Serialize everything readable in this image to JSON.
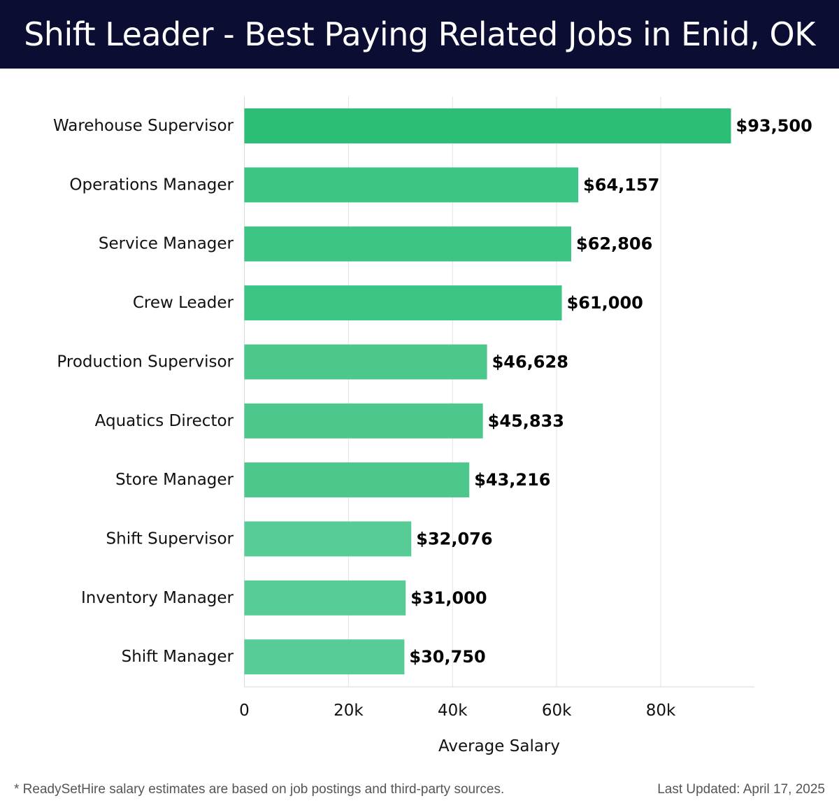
{
  "header": {
    "title": "Shift Leader - Best Paying Related Jobs in Enid, OK"
  },
  "footer": {
    "note": "* ReadySetHire salary estimates are based on job postings and third-party sources.",
    "updated": "Last Updated: April 17, 2025"
  },
  "chart_data": {
    "type": "bar",
    "orientation": "horizontal",
    "categories": [
      "Warehouse Supervisor",
      "Operations Manager",
      "Service Manager",
      "Crew Leader",
      "Production Supervisor",
      "Aquatics Director",
      "Store Manager",
      "Shift Supervisor",
      "Inventory Manager",
      "Shift Manager"
    ],
    "values": [
      93500,
      64157,
      62806,
      61000,
      46628,
      45833,
      43216,
      32076,
      31000,
      30750
    ],
    "value_labels": [
      "$93,500",
      "$64,157",
      "$62,806",
      "$61,000",
      "$46,628",
      "$45,833",
      "$43,216",
      "$32,076",
      "$31,000",
      "$30,750"
    ],
    "xlabel": "Average Salary",
    "xticks": [
      0,
      20000,
      40000,
      60000,
      80000
    ],
    "xtick_labels": [
      "0",
      "20k",
      "40k",
      "60k",
      "80k"
    ],
    "xlim": [
      0,
      98000
    ],
    "grid": true,
    "bar_colors": [
      "#2bbf76",
      "#3dc585",
      "#3dc585",
      "#3dc585",
      "#4cc88c",
      "#4cc88c",
      "#4cc88c",
      "#58cc96",
      "#58cc96",
      "#58cc96"
    ]
  }
}
